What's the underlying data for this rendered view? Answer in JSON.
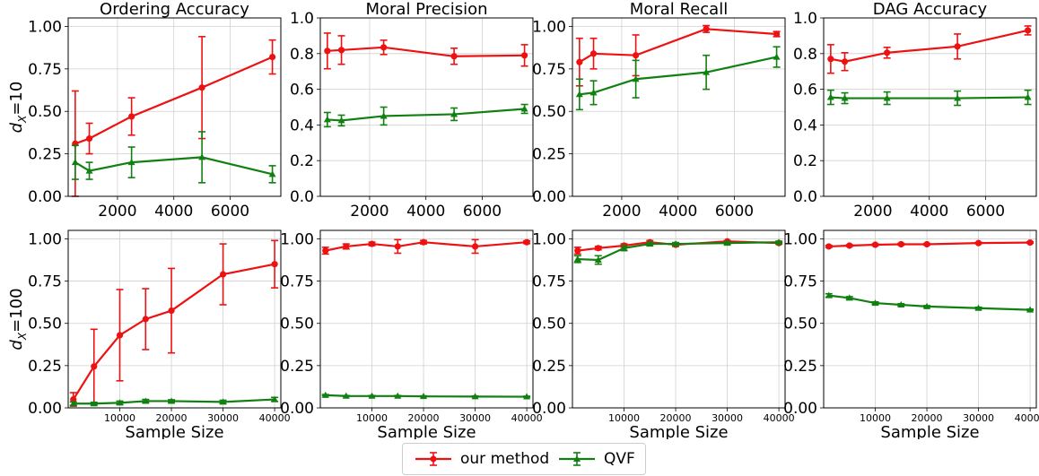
{
  "chart_data": {
    "type": "line",
    "layout": "2x4 grid of line charts with error bars",
    "row_labels": [
      "d_X=10",
      "d_X=100"
    ],
    "column_titles": [
      "Ordering Accuracy",
      "Moral Precision",
      "Moral Recall",
      "DAG Accuracy"
    ],
    "xlabel": "Sample Size",
    "legend": {
      "placement": "bottom-center",
      "entries": [
        {
          "name": "our method",
          "color": "#ee1111",
          "marker": "circle"
        },
        {
          "name": "QVF",
          "color": "#108010",
          "marker": "triangle"
        }
      ]
    },
    "grid": true,
    "rows": [
      {
        "row_label_main": "d",
        "row_label_sub": "X",
        "row_label_value": "=10",
        "x": [
          500,
          1000,
          2500,
          5000,
          7500
        ],
        "xlim": [
          250,
          7800
        ],
        "xticks": [
          2000,
          4000,
          6000
        ],
        "x_tick_labels_large": true,
        "panels": [
          {
            "title": "Ordering Accuracy",
            "ylim": [
              0,
              1.05
            ],
            "yticks": [
              "0.00",
              "0.25",
              "0.50",
              "0.75",
              "1.00"
            ],
            "ytick_values": [
              0,
              0.25,
              0.5,
              0.75,
              1.0
            ],
            "series": [
              {
                "name": "our method",
                "values": [
                  0.31,
                  0.34,
                  0.47,
                  0.64,
                  0.82
                ],
                "err": [
                  0.31,
                  0.09,
                  0.11,
                  0.3,
                  0.1
                ]
              },
              {
                "name": "QVF",
                "values": [
                  0.2,
                  0.15,
                  0.2,
                  0.23,
                  0.13
                ],
                "err": [
                  0.1,
                  0.05,
                  0.09,
                  0.15,
                  0.05
                ]
              }
            ]
          },
          {
            "title": "Moral Precision",
            "ylim": [
              0,
              1.0
            ],
            "yticks": [
              "0.0",
              "0.2",
              "0.4",
              "0.6",
              "0.8",
              "1.0"
            ],
            "ytick_values": [
              0,
              0.2,
              0.4,
              0.6,
              0.8,
              1.0
            ],
            "series": [
              {
                "name": "our method",
                "values": [
                  0.815,
                  0.82,
                  0.835,
                  0.785,
                  0.79
                ],
                "err": [
                  0.1,
                  0.08,
                  0.04,
                  0.045,
                  0.06
                ]
              },
              {
                "name": "QVF",
                "values": [
                  0.43,
                  0.425,
                  0.45,
                  0.46,
                  0.49
                ],
                "err": [
                  0.04,
                  0.03,
                  0.05,
                  0.035,
                  0.025
                ]
              }
            ]
          },
          {
            "title": "Moral Recall",
            "ylim": [
              0,
              1.05
            ],
            "yticks": [
              "0.00",
              "0.25",
              "0.50",
              "0.75",
              "1.00"
            ],
            "ytick_values": [
              0,
              0.25,
              0.5,
              0.75,
              1.0
            ],
            "series": [
              {
                "name": "our method",
                "values": [
                  0.79,
                  0.84,
                  0.83,
                  0.985,
                  0.955
                ],
                "err": [
                  0.14,
                  0.09,
                  0.12,
                  0.02,
                  0.015
                ]
              },
              {
                "name": "QVF",
                "values": [
                  0.6,
                  0.61,
                  0.69,
                  0.73,
                  0.82
                ],
                "err": [
                  0.09,
                  0.07,
                  0.11,
                  0.1,
                  0.06
                ]
              }
            ]
          },
          {
            "title": "DAG Accuracy",
            "ylim": [
              0,
              1.0
            ],
            "yticks": [
              "0.0",
              "0.2",
              "0.4",
              "0.6",
              "0.8",
              "1.0"
            ],
            "ytick_values": [
              0,
              0.2,
              0.4,
              0.6,
              0.8,
              1.0
            ],
            "series": [
              {
                "name": "our method",
                "values": [
                  0.77,
                  0.755,
                  0.805,
                  0.84,
                  0.93
                ],
                "err": [
                  0.08,
                  0.05,
                  0.03,
                  0.07,
                  0.025
                ]
              },
              {
                "name": "QVF",
                "values": [
                  0.555,
                  0.55,
                  0.55,
                  0.55,
                  0.555
                ],
                "err": [
                  0.04,
                  0.03,
                  0.035,
                  0.04,
                  0.04
                ]
              }
            ]
          }
        ]
      },
      {
        "row_label_main": "d",
        "row_label_sub": "X",
        "row_label_value": "=100",
        "x": [
          1000,
          5000,
          10000,
          15000,
          20000,
          30000,
          40000
        ],
        "xlim": [
          0,
          41200
        ],
        "xticks": [
          10000,
          20000,
          30000,
          40000
        ],
        "x_tick_labels_large": false,
        "panels": [
          {
            "title": "",
            "ylim": [
              0,
              1.05
            ],
            "yticks": [
              "0.00",
              "0.25",
              "0.50",
              "0.75",
              "1.00"
            ],
            "ytick_values": [
              0,
              0.25,
              0.5,
              0.75,
              1.0
            ],
            "series": [
              {
                "name": "our method",
                "values": [
                  0.05,
                  0.245,
                  0.43,
                  0.525,
                  0.575,
                  0.79,
                  0.85
                ],
                "err": [
                  0.04,
                  0.22,
                  0.27,
                  0.18,
                  0.25,
                  0.18,
                  0.14
                ]
              },
              {
                "name": "QVF",
                "values": [
                  0.025,
                  0.025,
                  0.03,
                  0.04,
                  0.04,
                  0.035,
                  0.05
                ],
                "err": [
                  0.01,
                  0.008,
                  0.01,
                  0.01,
                  0.008,
                  0.01,
                  0.012
                ]
              }
            ]
          },
          {
            "title": "",
            "ylim": [
              0,
              1.05
            ],
            "yticks": [
              "0.00",
              "0.25",
              "0.50",
              "0.75",
              "1.00"
            ],
            "ytick_values": [
              0,
              0.25,
              0.5,
              0.75,
              1.0
            ],
            "series": [
              {
                "name": "our method",
                "values": [
                  0.93,
                  0.955,
                  0.97,
                  0.955,
                  0.98,
                  0.955,
                  0.98
                ],
                "err": [
                  0.02,
                  0.015,
                  0.01,
                  0.04,
                  0.01,
                  0.04,
                  0.008
                ]
              },
              {
                "name": "QVF",
                "values": [
                  0.075,
                  0.07,
                  0.07,
                  0.07,
                  0.068,
                  0.067,
                  0.066
                ],
                "err": [
                  0.004,
                  0.003,
                  0.003,
                  0.003,
                  0.003,
                  0.003,
                  0.003
                ]
              }
            ]
          },
          {
            "title": "",
            "ylim": [
              0,
              1.05
            ],
            "yticks": [
              "0.00",
              "0.25",
              "0.50",
              "0.75",
              "1.00"
            ],
            "ytick_values": [
              0,
              0.25,
              0.5,
              0.75,
              1.0
            ],
            "series": [
              {
                "name": "our method",
                "values": [
                  0.93,
                  0.945,
                  0.96,
                  0.98,
                  0.965,
                  0.985,
                  0.975
                ],
                "err": [
                  0.02,
                  0.01,
                  0.01,
                  0.01,
                  0.01,
                  0.005,
                  0.005
                ]
              },
              {
                "name": "QVF",
                "values": [
                  0.88,
                  0.875,
                  0.945,
                  0.97,
                  0.97,
                  0.975,
                  0.98
                ],
                "err": [
                  0.02,
                  0.025,
                  0.015,
                  0.01,
                  0.008,
                  0.008,
                  0.006
                ]
              }
            ]
          },
          {
            "title": "",
            "ylim": [
              0,
              1.05
            ],
            "yticks": [
              "0.00",
              "0.25",
              "0.50",
              "0.75",
              "1.00"
            ],
            "ytick_values": [
              0,
              0.25,
              0.5,
              0.75,
              1.0
            ],
            "series": [
              {
                "name": "our method",
                "values": [
                  0.955,
                  0.96,
                  0.965,
                  0.968,
                  0.968,
                  0.975,
                  0.978
                ],
                "err": [
                  0.006,
                  0.005,
                  0.005,
                  0.005,
                  0.004,
                  0.004,
                  0.004
                ]
              },
              {
                "name": "QVF",
                "values": [
                  0.665,
                  0.65,
                  0.62,
                  0.61,
                  0.6,
                  0.59,
                  0.58
                ],
                "err": [
                  0.01,
                  0.008,
                  0.007,
                  0.006,
                  0.005,
                  0.005,
                  0.004
                ]
              }
            ]
          }
        ]
      }
    ]
  }
}
